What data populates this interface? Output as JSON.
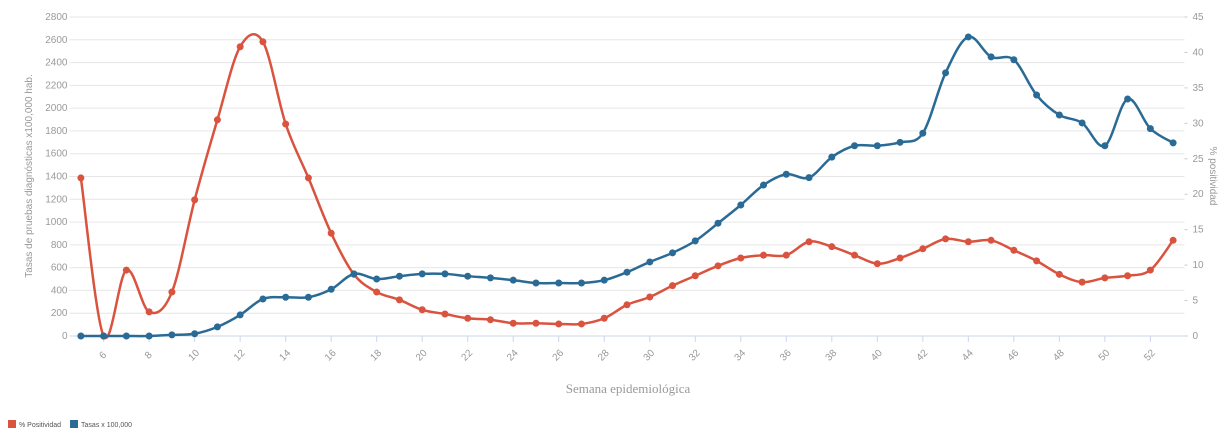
{
  "chart_data": {
    "type": "line",
    "x_label": "Semana epidemiológica",
    "y_label": "Tasas de pruebas diagnósticas x100,000 hab.",
    "y2_label": "% positividad",
    "x": [
      5,
      6,
      7,
      8,
      9,
      10,
      11,
      12,
      13,
      14,
      15,
      16,
      17,
      18,
      19,
      20,
      21,
      22,
      23,
      24,
      25,
      26,
      27,
      28,
      29,
      30,
      31,
      32,
      33,
      34,
      35,
      36,
      37,
      38,
      39,
      40,
      41,
      42,
      43,
      44,
      45,
      46,
      47,
      48,
      49,
      50,
      51,
      52,
      53
    ],
    "xlim": [
      4.5,
      53.5
    ],
    "xticks": [
      6,
      8,
      10,
      12,
      14,
      16,
      18,
      20,
      22,
      24,
      26,
      28,
      30,
      32,
      34,
      36,
      38,
      40,
      42,
      44,
      46,
      48,
      50,
      52
    ],
    "ylim": [
      0,
      2800
    ],
    "yticks": [
      0,
      200,
      400,
      600,
      800,
      1000,
      1200,
      1400,
      1600,
      1800,
      2000,
      2200,
      2400,
      2600,
      2800
    ],
    "y2lim": [
      0,
      45
    ],
    "y2ticks": [
      0,
      5,
      10,
      15,
      20,
      25,
      30,
      35,
      40,
      45
    ],
    "grid": true,
    "legend": "bottom-left",
    "series": [
      {
        "name": "% Positividad",
        "color": "#d9533f",
        "axis": "y2",
        "values": [
          22.3,
          0,
          9.3,
          3.4,
          6.2,
          19.2,
          30.5,
          40.8,
          41.5,
          29.9,
          22.3,
          14.5,
          8.7,
          6.2,
          5.1,
          3.7,
          3.1,
          2.5,
          2.3,
          1.8,
          1.8,
          1.7,
          1.7,
          2.5,
          4.4,
          5.5,
          7.1,
          8.5,
          9.9,
          11.0,
          11.4,
          11.4,
          13.3,
          12.6,
          11.4,
          10.2,
          11.0,
          12.3,
          13.7,
          13.3,
          13.5,
          12.1,
          10.6,
          8.7,
          7.6,
          8.2,
          8.5,
          9.3,
          13.5
        ]
      },
      {
        "name": "Tasas x 100,000",
        "color": "#2a6b96",
        "values": [
          0,
          0,
          0,
          0,
          10,
          20,
          80,
          185,
          325,
          340,
          340,
          410,
          545,
          500,
          525,
          545,
          545,
          525,
          510,
          490,
          465,
          465,
          465,
          490,
          560,
          650,
          730,
          835,
          990,
          1150,
          1325,
          1420,
          1390,
          1570,
          1670,
          1670,
          1700,
          1780,
          2310,
          2625,
          2450,
          2425,
          2115,
          1940,
          1870,
          1670,
          2080,
          1820,
          1695
        ]
      }
    ]
  }
}
